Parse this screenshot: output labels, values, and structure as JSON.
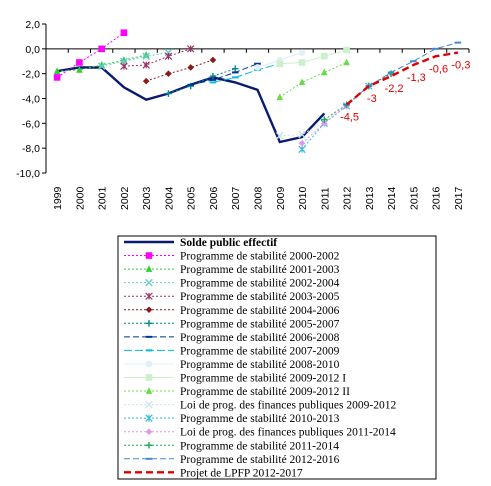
{
  "chart_data": {
    "type": "line",
    "x": [
      1999,
      2000,
      2001,
      2002,
      2003,
      2004,
      2005,
      2006,
      2007,
      2008,
      2009,
      2010,
      2011,
      2012,
      2013,
      2014,
      2015,
      2016,
      2017
    ],
    "ylim": [
      -10,
      2
    ],
    "yticks": [
      "2,0",
      "0,0",
      "-2,0",
      "-4,0",
      "-6,0",
      "-8,0",
      "-10,0"
    ],
    "xticks": [
      "1999",
      "2000",
      "2001",
      "2002",
      "2003",
      "2004",
      "2005",
      "2006",
      "2007",
      "2008",
      "2009",
      "2010",
      "2011",
      "2012",
      "2013",
      "2014",
      "2015",
      "2016",
      "2017"
    ],
    "grid": false,
    "legend_position": "bottom",
    "series": [
      {
        "name": "Solde public effectif",
        "color": "#0a1a6e",
        "dash": "",
        "marker": "none",
        "width": 2.4,
        "points": [
          [
            1999,
            -1.8
          ],
          [
            2000,
            -1.5
          ],
          [
            2001,
            -1.5
          ],
          [
            2002,
            -3.1
          ],
          [
            2003,
            -4.1
          ],
          [
            2004,
            -3.6
          ],
          [
            2005,
            -2.9
          ],
          [
            2006,
            -2.3
          ],
          [
            2007,
            -2.7
          ],
          [
            2008,
            -3.3
          ],
          [
            2009,
            -7.5
          ],
          [
            2010,
            -7.1
          ],
          [
            2011,
            -5.2
          ]
        ]
      },
      {
        "name": "Programme de stabilité 2000-2002",
        "color": "#ff00ff",
        "dash": "2,2",
        "marker": "square",
        "width": 1,
        "points": [
          [
            1999,
            -2.3
          ],
          [
            2000,
            -1.1
          ],
          [
            2001,
            0.0
          ],
          [
            2002,
            1.3
          ]
        ]
      },
      {
        "name": "Programme de stabilité 2001-2003",
        "color": "#33cc33",
        "dash": "2,2",
        "marker": "triangle",
        "width": 1,
        "points": [
          [
            1999,
            -1.8
          ],
          [
            2000,
            -1.7
          ],
          [
            2001,
            -1.3
          ],
          [
            2002,
            -0.9
          ],
          [
            2003,
            -0.5
          ]
        ]
      },
      {
        "name": "Programme de stabilité 2002-2004",
        "color": "#66cccc",
        "dash": "2,2",
        "marker": "x",
        "width": 1,
        "points": [
          [
            2001,
            -1.4
          ],
          [
            2002,
            -1.0
          ],
          [
            2003,
            -0.6
          ],
          [
            2004,
            -0.3
          ]
        ]
      },
      {
        "name": "Programme de stabilité 2003-2005",
        "color": "#993366",
        "dash": "2,2",
        "marker": "star",
        "width": 1,
        "points": [
          [
            2002,
            -1.4
          ],
          [
            2003,
            -1.3
          ],
          [
            2004,
            -0.6
          ],
          [
            2005,
            0.0
          ]
        ]
      },
      {
        "name": "Programme de stabilité 2004-2006",
        "color": "#8b1a1a",
        "dash": "2,2",
        "marker": "diamond",
        "width": 1,
        "points": [
          [
            2003,
            -2.6
          ],
          [
            2004,
            -2.0
          ],
          [
            2005,
            -1.5
          ],
          [
            2006,
            -0.9
          ]
        ]
      },
      {
        "name": "Programme de stabilité 2005-2007",
        "color": "#008b8b",
        "dash": "2,2",
        "marker": "plus",
        "width": 1,
        "points": [
          [
            2004,
            -3.6
          ],
          [
            2005,
            -3.0
          ],
          [
            2006,
            -2.2
          ],
          [
            2007,
            -1.6
          ]
        ]
      },
      {
        "name": "Programme de stabilité 2006-2008",
        "color": "#003399",
        "dash": "6,3",
        "marker": "dash",
        "width": 1,
        "points": [
          [
            2005,
            -2.9
          ],
          [
            2006,
            -2.5
          ],
          [
            2007,
            -1.9
          ],
          [
            2008,
            -1.2
          ]
        ]
      },
      {
        "name": "Programme de stabilité 2007-2009",
        "color": "#00bcd4",
        "dash": "8,3",
        "marker": "dash",
        "width": 1,
        "points": [
          [
            2006,
            -2.7
          ],
          [
            2007,
            -2.3
          ],
          [
            2008,
            -1.7
          ],
          [
            2009,
            -1.2
          ]
        ]
      },
      {
        "name": "Programme de stabilité 2008-2010",
        "color": "#e0f0f8",
        "dash": "",
        "marker": "circle",
        "width": 1,
        "points": [
          [
            2008,
            -1.5
          ],
          [
            2009,
            -0.9
          ],
          [
            2010,
            -0.3
          ]
        ]
      },
      {
        "name": "Programme de stabilité 2009-2012 I",
        "color": "#ccf0cc",
        "dash": "",
        "marker": "square",
        "width": 1,
        "points": [
          [
            2009,
            -1.2
          ],
          [
            2010,
            -1.1
          ],
          [
            2011,
            -0.6
          ],
          [
            2012,
            -0.1
          ]
        ]
      },
      {
        "name": "Programme de stabilité 2009-2012 II",
        "color": "#66dd44",
        "dash": "2,2",
        "marker": "triangle",
        "width": 1,
        "points": [
          [
            2009,
            -3.9
          ],
          [
            2010,
            -2.7
          ],
          [
            2011,
            -1.9
          ],
          [
            2012,
            -1.1
          ]
        ]
      },
      {
        "name": "Loi de prog. des finances publiques 2009-2012",
        "color": "#cce4ee",
        "dash": "2,2",
        "marker": "x",
        "width": 1,
        "points": [
          [
            2009,
            -7.0
          ],
          [
            2010,
            -6.9
          ],
          [
            2011,
            -5.9
          ],
          [
            2012,
            -4.6
          ]
        ]
      },
      {
        "name": "Programme de stabilité 2010-2013",
        "color": "#33bbdd",
        "dash": "2,2",
        "marker": "star",
        "width": 1,
        "points": [
          [
            2010,
            -8.1
          ],
          [
            2011,
            -6.0
          ],
          [
            2012,
            -4.6
          ],
          [
            2013,
            -3.0
          ]
        ]
      },
      {
        "name": "Loi de prog. des finances publiques 2011-2014",
        "color": "#dd99ee",
        "dash": "2,2",
        "marker": "diamond",
        "width": 1,
        "points": [
          [
            2010,
            -7.6
          ],
          [
            2011,
            -6.0
          ],
          [
            2012,
            -4.6
          ],
          [
            2013,
            -3.0
          ],
          [
            2014,
            -2.0
          ]
        ]
      },
      {
        "name": "Programme de stabilité 2011-2014",
        "color": "#22aa55",
        "dash": "2,2",
        "marker": "plus",
        "width": 1,
        "points": [
          [
            2011,
            -5.7
          ],
          [
            2012,
            -4.5
          ],
          [
            2013,
            -3.0
          ],
          [
            2014,
            -2.0
          ]
        ]
      },
      {
        "name": "Programme de stabilité 2012-2016",
        "color": "#4488cc",
        "dash": "6,3",
        "marker": "dash",
        "width": 1,
        "points": [
          [
            2012,
            -4.5
          ],
          [
            2013,
            -3.0
          ],
          [
            2014,
            -1.9
          ],
          [
            2015,
            -1.0
          ],
          [
            2016,
            0.0
          ],
          [
            2017,
            0.5
          ]
        ]
      },
      {
        "name": "Projet de LPFP 2012-2017",
        "color": "#dd0000",
        "dash": "7,4",
        "marker": "none",
        "width": 2.4,
        "points": [
          [
            2012,
            -4.5
          ],
          [
            2013,
            -3.0
          ],
          [
            2014,
            -2.2
          ],
          [
            2015,
            -1.3
          ],
          [
            2016,
            -0.6
          ],
          [
            2017,
            -0.3
          ]
        ]
      }
    ],
    "annotations": [
      {
        "x": 2012,
        "y": -4.5,
        "text": "-4,5",
        "color": "#dd0000"
      },
      {
        "x": 2013,
        "y": -3.0,
        "text": "-3",
        "color": "#dd0000"
      },
      {
        "x": 2014,
        "y": -2.2,
        "text": "-2,2",
        "color": "#dd0000"
      },
      {
        "x": 2015,
        "y": -1.3,
        "text": "-1,3",
        "color": "#dd0000"
      },
      {
        "x": 2016,
        "y": -0.6,
        "text": "-0,6",
        "color": "#dd0000"
      },
      {
        "x": 2017,
        "y": -0.3,
        "text": "-0,3",
        "color": "#dd0000"
      }
    ]
  }
}
